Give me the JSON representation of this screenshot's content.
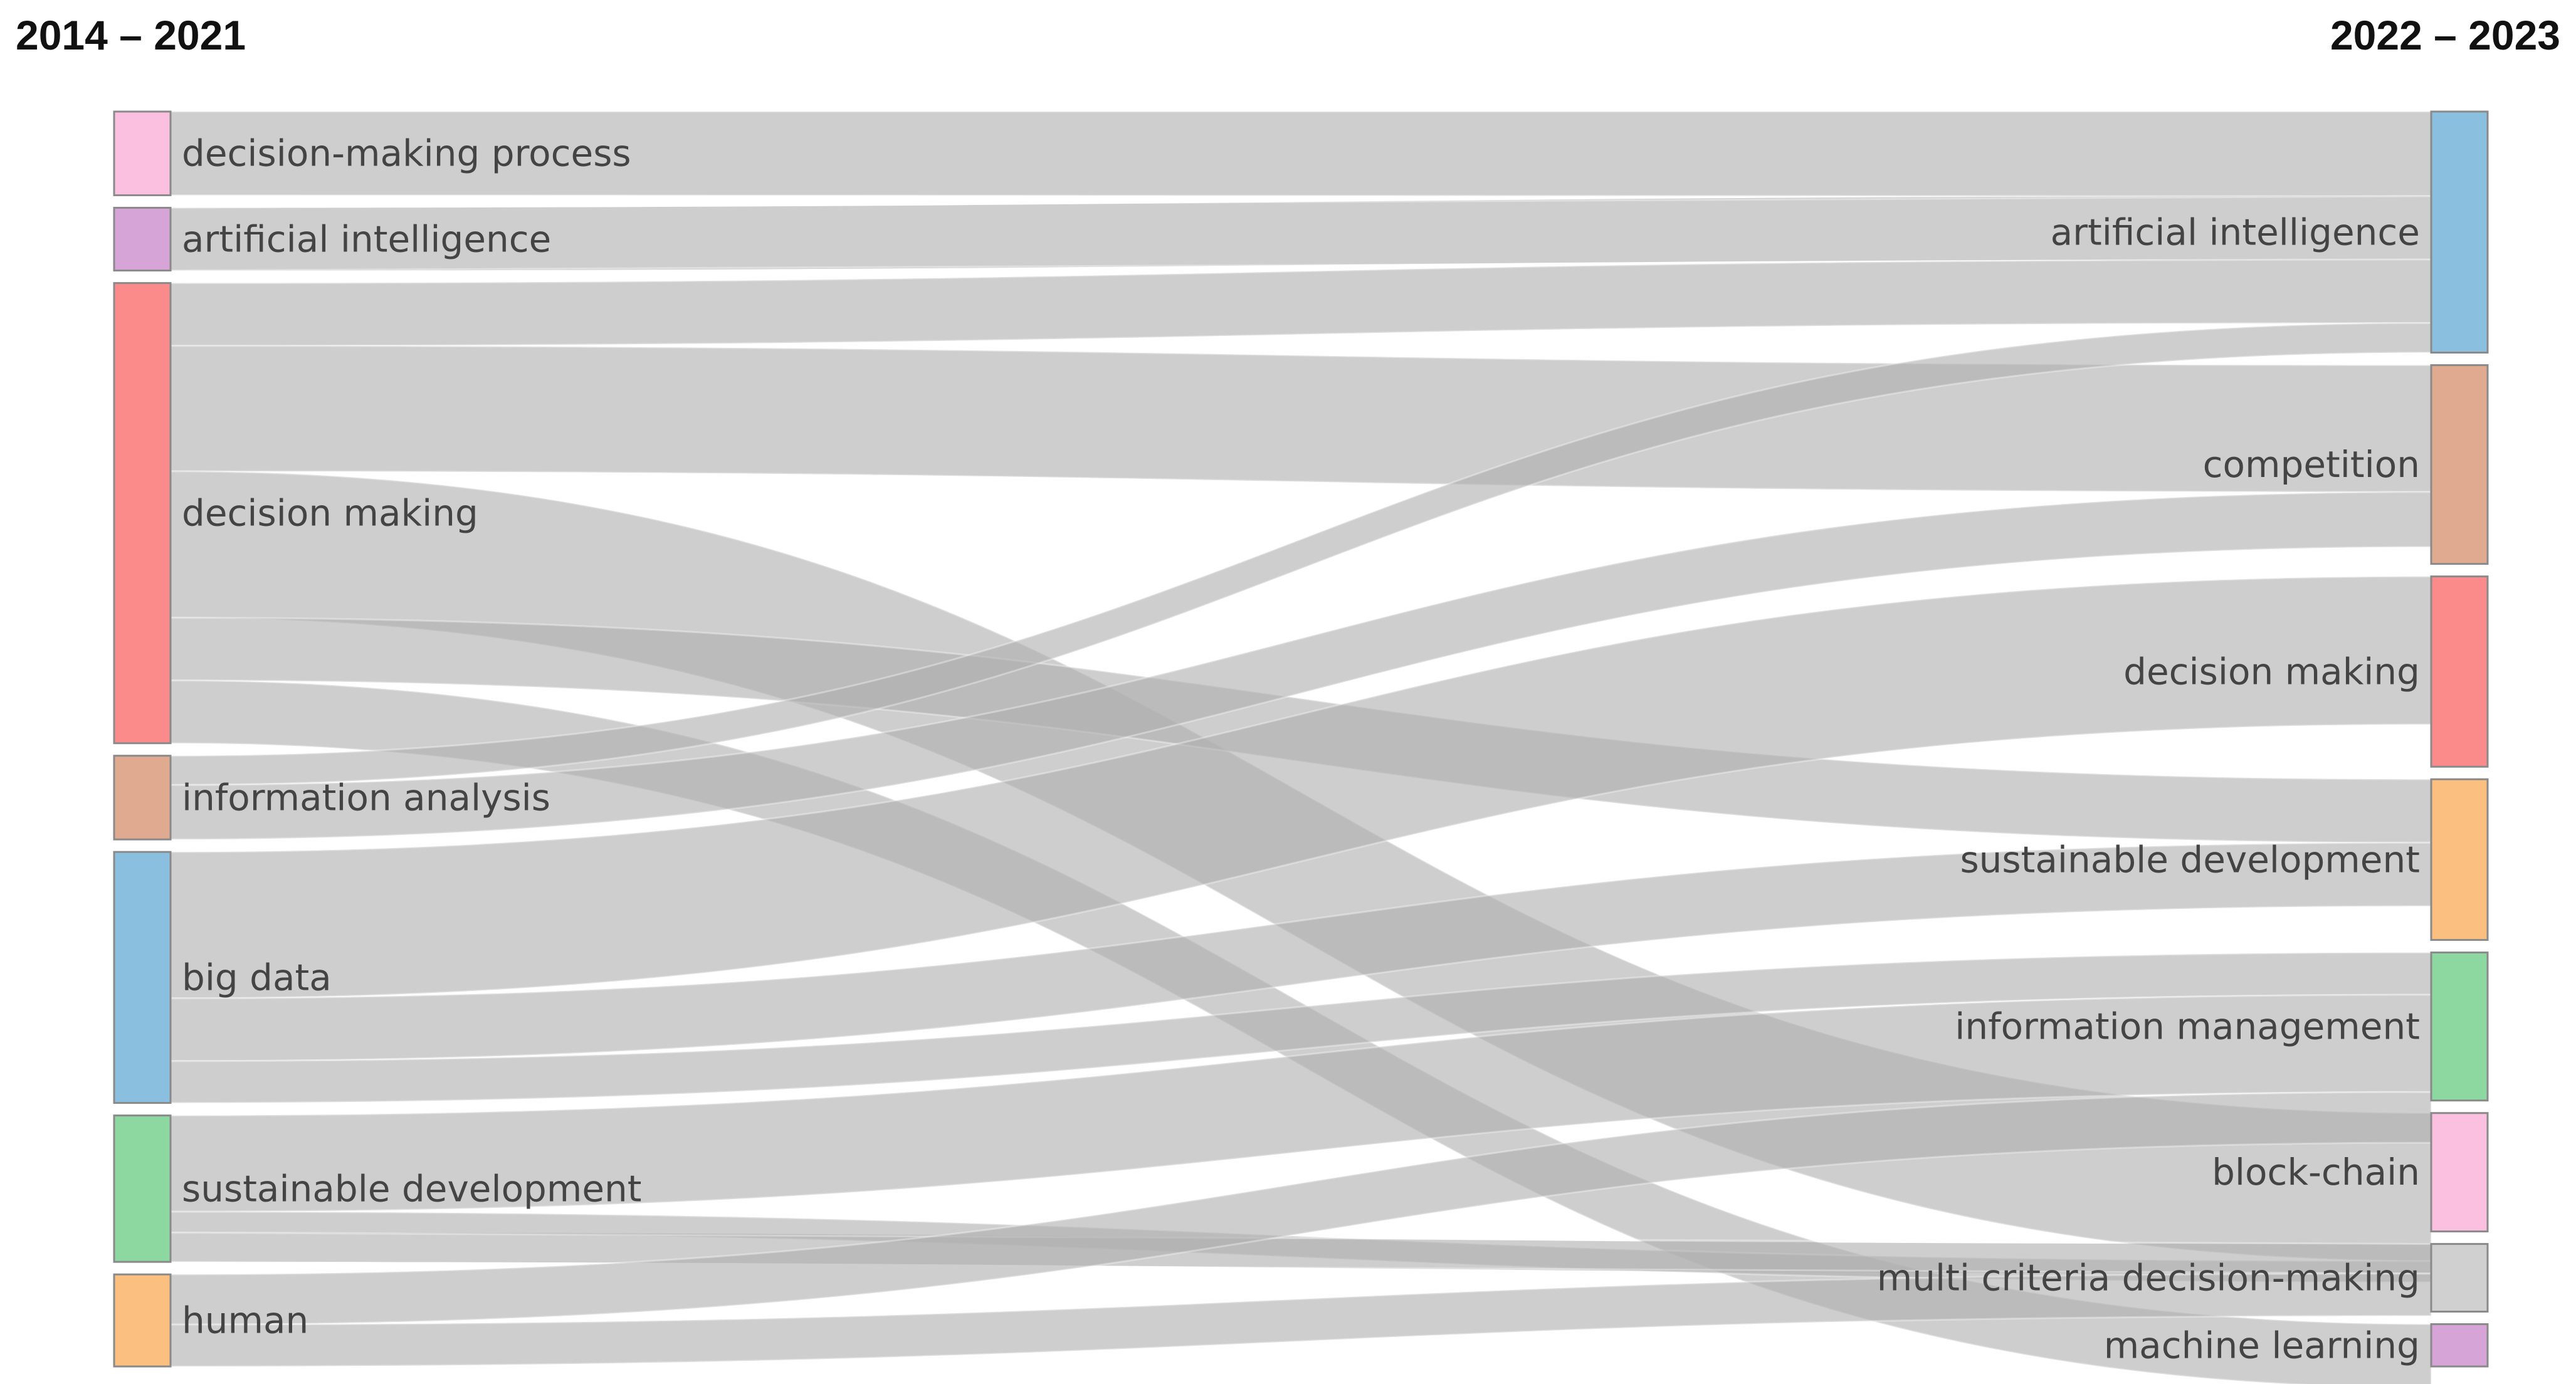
{
  "periods": {
    "left": "2014 – 2021",
    "right": "2022 – 2023"
  },
  "link_color": "#b0b0b0",
  "nodes": {
    "left": [
      {
        "id": "L1",
        "label": "decision-making process",
        "color": "#fbbfe0",
        "weight": 2
      },
      {
        "id": "L2",
        "label": "artificial intelligence",
        "color": "#d6a4d6",
        "weight": 1.5
      },
      {
        "id": "L3",
        "label": "decision making",
        "color": "#fb8a8a",
        "weight": 11
      },
      {
        "id": "L4",
        "label": "information analysis",
        "color": "#e0aa90",
        "weight": 2
      },
      {
        "id": "L5",
        "label": "big data",
        "color": "#8bbfe0",
        "weight": 6
      },
      {
        "id": "L6",
        "label": "sustainable development",
        "color": "#8cd8a0",
        "weight": 3.5
      },
      {
        "id": "L7",
        "label": "human",
        "color": "#fbbf80",
        "weight": 2.2
      }
    ],
    "right": [
      {
        "id": "R1",
        "label": "artificial intelligence",
        "color": "#8bbfe0",
        "weight": 5.7
      },
      {
        "id": "R2",
        "label": "competition",
        "color": "#e0aa90",
        "weight": 4.7
      },
      {
        "id": "R3",
        "label": "decision making",
        "color": "#fb8a8a",
        "weight": 4.5
      },
      {
        "id": "R4",
        "label": "sustainable development",
        "color": "#fbbf80",
        "weight": 3.8
      },
      {
        "id": "R5",
        "label": "information management",
        "color": "#8cd8a0",
        "weight": 3.5
      },
      {
        "id": "R6",
        "label": "block-chain",
        "color": "#fbbfe0",
        "weight": 2.8
      },
      {
        "id": "R7",
        "label": "multi criteria decision-making",
        "color": "#d0d0d0",
        "weight": 1.6
      },
      {
        "id": "R8",
        "label": "machine learning",
        "color": "#d6a4d6",
        "weight": 1
      }
    ]
  },
  "links": [
    {
      "source": "L1",
      "target": "R1",
      "value": 2
    },
    {
      "source": "L2",
      "target": "R1",
      "value": 1.5
    },
    {
      "source": "L3",
      "target": "R1",
      "value": 1.5
    },
    {
      "source": "L3",
      "target": "R2",
      "value": 3
    },
    {
      "source": "L3",
      "target": "R6",
      "value": 3.5
    },
    {
      "source": "L3",
      "target": "R4",
      "value": 1.5
    },
    {
      "source": "L3",
      "target": "R8",
      "value": 1.5
    },
    {
      "source": "L4",
      "target": "R1",
      "value": 0.7
    },
    {
      "source": "L4",
      "target": "R2",
      "value": 1.3
    },
    {
      "source": "L5",
      "target": "R3",
      "value": 3.5
    },
    {
      "source": "L5",
      "target": "R4",
      "value": 1.5
    },
    {
      "source": "L5",
      "target": "R5",
      "value": 1
    },
    {
      "source": "L6",
      "target": "R5",
      "value": 2.3
    },
    {
      "source": "L6",
      "target": "R6",
      "value": 0.5
    },
    {
      "source": "L6",
      "target": "R7",
      "value": 0.7
    },
    {
      "source": "L7",
      "target": "R5",
      "value": 1.2
    },
    {
      "source": "L7",
      "target": "R7",
      "value": 1
    }
  ]
}
